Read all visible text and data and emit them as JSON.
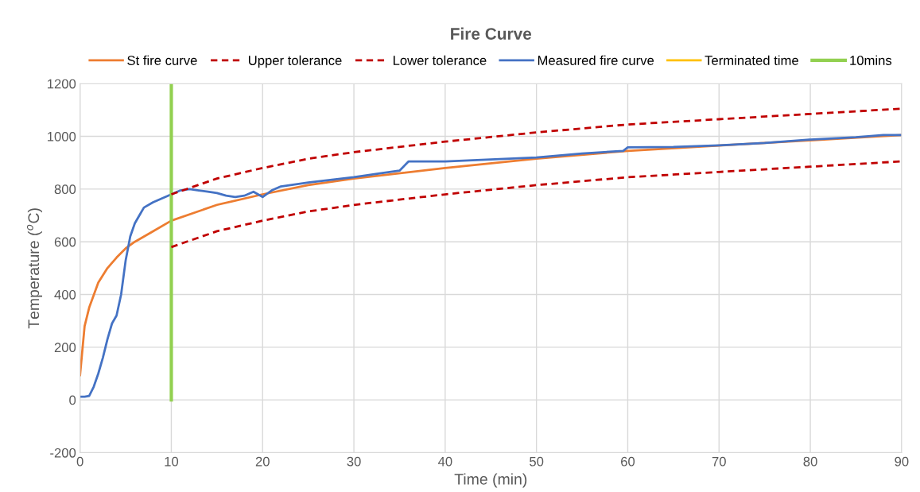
{
  "chart_data": {
    "type": "line",
    "title": "Fire Curve",
    "xlabel": "Time (min)",
    "ylabel": "Temperature ($^{o}$C)",
    "xlim": [
      0,
      90
    ],
    "xticks": [
      0,
      10,
      20,
      30,
      40,
      50,
      60,
      70,
      80,
      90
    ],
    "ylim": [
      -200,
      1200
    ],
    "yticks": [
      -200,
      0,
      200,
      400,
      600,
      800,
      1000,
      1200
    ],
    "grid": true,
    "legend": "top",
    "marker": "none",
    "series": [
      {
        "name": "St fire curve",
        "color": "#ed7d31",
        "line_style": "solid",
        "x": [
          0,
          0.5,
          1,
          2,
          3,
          4,
          5,
          6,
          8,
          10,
          15,
          20,
          25,
          30,
          40,
          50,
          60,
          70,
          80,
          90
        ],
        "values": [
          94,
          280,
          350,
          445,
          500,
          540,
          575,
          600,
          640,
          680,
          740,
          780,
          815,
          840,
          880,
          915,
          945,
          965,
          985,
          1005
        ]
      },
      {
        "name": "Upper tolerance",
        "color": "#c00000",
        "line_style": "dashed",
        "x": [
          10,
          15,
          20,
          25,
          30,
          40,
          50,
          60,
          70,
          80,
          90
        ],
        "values": [
          780,
          840,
          880,
          915,
          940,
          980,
          1015,
          1045,
          1065,
          1085,
          1105
        ]
      },
      {
        "name": "Lower tolerance",
        "color": "#c00000",
        "line_style": "dashed",
        "x": [
          10,
          15,
          20,
          25,
          30,
          40,
          50,
          60,
          70,
          80,
          90
        ],
        "values": [
          580,
          640,
          680,
          715,
          740,
          780,
          815,
          845,
          865,
          885,
          905
        ]
      },
      {
        "name": "Measured fire curve",
        "color": "#4472c4",
        "line_style": "solid",
        "x": [
          0,
          0.5,
          1,
          1.5,
          2,
          2.5,
          3,
          3.5,
          4,
          4.5,
          5,
          5.5,
          6,
          6.5,
          7,
          8,
          9,
          10,
          11,
          12,
          13,
          14,
          15,
          16,
          17,
          18,
          19,
          20,
          21,
          22,
          25,
          30,
          33,
          35,
          36,
          38,
          40,
          45,
          50,
          55,
          59.5,
          60,
          65,
          70,
          75,
          80,
          85,
          88,
          90
        ],
        "values": [
          12,
          12,
          15,
          50,
          100,
          160,
          230,
          290,
          320,
          400,
          530,
          620,
          670,
          700,
          730,
          750,
          765,
          780,
          795,
          800,
          795,
          790,
          785,
          775,
          770,
          775,
          790,
          770,
          795,
          810,
          825,
          845,
          860,
          870,
          905,
          905,
          905,
          912,
          920,
          935,
          945,
          958,
          960,
          966,
          975,
          988,
          997,
          1005,
          1005
        ]
      },
      {
        "name": "Terminated time",
        "color": "#ffc000",
        "line_style": "solid"
      },
      {
        "name": "10mins",
        "color": "#92d050",
        "line_style": "solid",
        "x": [
          10,
          10
        ],
        "values": [
          0,
          1200
        ]
      }
    ]
  }
}
